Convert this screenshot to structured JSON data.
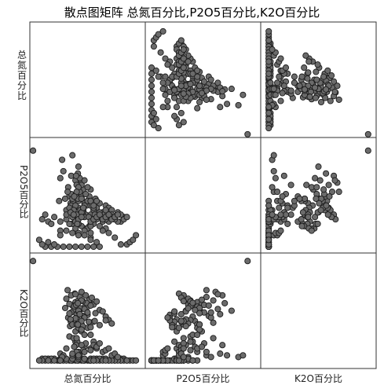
{
  "chart_data": {
    "type": "scatter",
    "title": "散点图矩阵 总氮百分比,P2O5百分比,K2O百分比",
    "variables": [
      "总氮百分比",
      "P2O5百分比",
      "K2O百分比"
    ],
    "row_labels": [
      "总\n氮\n百\n分\n比",
      "P2O5百分比",
      "K2O百分比"
    ],
    "col_labels": [
      "总氮百分比",
      "P2O5百分比",
      "K2O百分比"
    ],
    "variable_ranges": {
      "总氮百分比": [
        0.3,
        2.0
      ],
      "P2O5百分比": [
        0.0,
        0.45
      ],
      "K2O百分比": [
        0.0,
        3.0
      ]
    },
    "samples": [
      [
        0.95,
        0.2,
        1.75
      ],
      [
        0.9,
        0.18,
        1.65
      ],
      [
        1.0,
        0.17,
        1.8
      ],
      [
        0.85,
        0.22,
        1.7
      ],
      [
        1.05,
        0.21,
        1.55
      ],
      [
        1.1,
        0.19,
        1.6
      ],
      [
        0.8,
        0.16,
        1.85
      ],
      [
        0.92,
        0.15,
        1.5
      ],
      [
        1.02,
        0.24,
        1.9
      ],
      [
        0.88,
        0.23,
        1.45
      ],
      [
        1.12,
        0.14,
        1.95
      ],
      [
        0.97,
        0.13,
        1.4
      ],
      [
        1.15,
        0.2,
        1.62
      ],
      [
        0.78,
        0.21,
        1.58
      ],
      [
        1.2,
        0.18,
        1.72
      ],
      [
        1.08,
        0.25,
        1.35
      ],
      [
        0.94,
        0.12,
        2.0
      ],
      [
        1.25,
        0.16,
        1.68
      ],
      [
        0.83,
        0.26,
        1.3
      ],
      [
        1.3,
        0.17,
        1.77
      ],
      [
        0.98,
        0.11,
        1.25
      ],
      [
        1.18,
        0.22,
        1.82
      ],
      [
        0.87,
        0.19,
        1.2
      ],
      [
        1.35,
        0.19,
        1.52
      ],
      [
        0.99,
        0.27,
        1.15
      ],
      [
        1.22,
        0.13,
        1.88
      ],
      [
        0.91,
        0.2,
        1.1
      ],
      [
        1.4,
        0.15,
        1.48
      ],
      [
        1.05,
        0.28,
        2.05
      ],
      [
        0.86,
        0.1,
        1.05
      ],
      [
        0.93,
        0.17,
        1.63
      ],
      [
        1.03,
        0.16,
        1.57
      ],
      [
        1.13,
        0.18,
        1.73
      ],
      [
        0.96,
        0.23,
        1.67
      ],
      [
        1.07,
        0.14,
        1.78
      ],
      [
        1.28,
        0.21,
        1.43
      ],
      [
        1.45,
        0.18,
        1.33
      ],
      [
        1.5,
        0.17,
        1.23
      ],
      [
        1.55,
        0.16,
        1.13
      ],
      [
        0.82,
        0.24,
        2.1
      ],
      [
        0.95,
        0.0,
        0.05
      ],
      [
        1.05,
        0.0,
        0.05
      ],
      [
        0.75,
        0.0,
        0.05
      ],
      [
        0.85,
        0.0,
        0.05
      ],
      [
        1.15,
        0.0,
        0.05
      ],
      [
        1.25,
        0.0,
        0.05
      ],
      [
        0.65,
        0.0,
        0.05
      ],
      [
        0.55,
        0.0,
        0.05
      ],
      [
        1.35,
        0.0,
        0.05
      ],
      [
        0.45,
        0.0,
        0.05
      ],
      [
        1.0,
        0.06,
        0.05
      ],
      [
        1.1,
        0.08,
        0.05
      ],
      [
        0.9,
        0.1,
        0.05
      ],
      [
        1.2,
        0.04,
        0.05
      ],
      [
        0.8,
        0.12,
        0.05
      ],
      [
        0.98,
        0.14,
        0.05
      ],
      [
        1.08,
        0.16,
        0.05
      ],
      [
        0.88,
        0.18,
        0.05
      ],
      [
        1.18,
        0.09,
        0.05
      ],
      [
        0.7,
        0.07,
        0.05
      ],
      [
        1.0,
        0.2,
        0.3
      ],
      [
        0.95,
        0.18,
        0.6
      ],
      [
        1.05,
        0.22,
        0.9
      ],
      [
        0.9,
        0.21,
        1.1
      ],
      [
        1.1,
        0.19,
        0.45
      ],
      [
        0.85,
        0.17,
        0.75
      ],
      [
        1.15,
        0.2,
        1.0
      ],
      [
        1.02,
        0.24,
        0.2
      ],
      [
        0.92,
        0.16,
        0.15
      ],
      [
        1.12,
        0.23,
        0.55
      ],
      [
        0.5,
        0.11,
        0.1
      ],
      [
        0.4,
        0.12,
        0.1
      ],
      [
        0.6,
        0.13,
        0.1
      ],
      [
        0.55,
        0.1,
        0.1
      ],
      [
        0.45,
        0.14,
        0.1
      ],
      [
        1.2,
        0.14,
        0.1
      ],
      [
        1.1,
        0.13,
        0.1
      ],
      [
        1.3,
        0.12,
        0.1
      ],
      [
        1.4,
        0.11,
        0.1
      ],
      [
        1.0,
        0.12,
        0.1
      ],
      [
        0.9,
        0.13,
        0.1
      ],
      [
        0.8,
        0.14,
        0.1
      ],
      [
        0.7,
        0.11,
        0.1
      ],
      [
        1.6,
        0.12,
        0.1
      ],
      [
        1.7,
        0.11,
        0.1
      ],
      [
        1.75,
        0.13,
        0.1
      ],
      [
        1.55,
        0.14,
        0.1
      ],
      [
        1.65,
        0.15,
        0.1
      ],
      [
        1.45,
        0.16,
        0.1
      ],
      [
        1.35,
        0.15,
        0.1
      ],
      [
        1.25,
        0.16,
        0.1
      ],
      [
        1.15,
        0.08,
        1.38
      ],
      [
        1.05,
        0.09,
        1.12
      ],
      [
        0.95,
        0.08,
        1.28
      ],
      [
        1.25,
        0.1,
        1.18
      ],
      [
        1.35,
        0.09,
        1.08
      ],
      [
        0.85,
        0.1,
        1.42
      ],
      [
        1.45,
        0.08,
        1.22
      ],
      [
        1.1,
        0.07,
        1.3
      ],
      [
        1.0,
        0.1,
        1.48
      ],
      [
        1.2,
        0.09,
        1.02
      ],
      [
        0.97,
        0.14,
        1.1
      ],
      [
        1.07,
        0.15,
        1.05
      ],
      [
        1.17,
        0.13,
        1.18
      ],
      [
        0.87,
        0.15,
        1.25
      ],
      [
        1.27,
        0.14,
        1.2
      ],
      [
        0.7,
        0.3,
        0.25
      ],
      [
        0.75,
        0.33,
        0.2
      ],
      [
        0.73,
        0.38,
        0.15
      ],
      [
        0.9,
        0.4,
        0.2
      ],
      [
        1.0,
        0.35,
        1.5
      ],
      [
        0.68,
        0.2,
        0.05
      ],
      [
        0.88,
        0.31,
        1.95
      ],
      [
        0.95,
        0.29,
        1.98
      ],
      [
        1.2,
        0.25,
        1.65
      ],
      [
        1.05,
        0.27,
        1.8
      ],
      [
        1.1,
        0.29,
        1.55
      ],
      [
        1.15,
        0.26,
        1.45
      ],
      [
        1.02,
        0.3,
        1.4
      ],
      [
        0.99,
        0.32,
        1.72
      ],
      [
        1.05,
        0.15,
        0.5
      ],
      [
        1.1,
        0.18,
        0.8
      ],
      [
        1.2,
        0.2,
        0.8
      ],
      [
        1.25,
        0.17,
        0.6
      ],
      [
        1.3,
        0.2,
        0.4
      ],
      [
        0.95,
        0.11,
        0.9
      ],
      [
        1.0,
        0.12,
        1.0
      ],
      [
        1.05,
        0.13,
        1.2
      ],
      [
        0.92,
        0.14,
        0.7
      ],
      [
        0.98,
        0.1,
        0.6
      ],
      [
        0.96,
        0.31,
        0.5
      ],
      [
        0.97,
        0.27,
        0.7
      ],
      [
        0.99,
        0.21,
        1.1
      ],
      [
        1.8,
        0.01,
        0.05
      ],
      [
        1.85,
        0.02,
        0.05
      ],
      [
        1.9,
        0.03,
        0.05
      ],
      [
        1.95,
        0.05,
        0.05
      ],
      [
        1.7,
        0.01,
        0.05
      ],
      [
        1.6,
        0.04,
        0.05
      ],
      [
        1.5,
        0.06,
        0.05
      ],
      [
        1.4,
        0.07,
        0.05
      ],
      [
        1.3,
        0.02,
        0.05
      ],
      [
        1.2,
        0.03,
        0.05
      ],
      [
        0.7,
        0.05,
        0.05
      ],
      [
        0.6,
        0.01,
        0.05
      ],
      [
        0.5,
        0.02,
        0.05
      ],
      [
        0.4,
        0.01,
        0.05
      ],
      [
        0.35,
        0.03,
        0.05
      ],
      [
        1.75,
        0.12,
        0.05
      ],
      [
        1.8,
        0.13,
        0.05
      ],
      [
        1.7,
        0.14,
        0.05
      ],
      [
        1.65,
        0.11,
        0.05
      ],
      [
        1.6,
        0.12,
        0.05
      ],
      [
        1.55,
        0.13,
        0.05
      ],
      [
        1.5,
        0.11,
        0.05
      ],
      [
        1.45,
        0.12,
        0.05
      ],
      [
        1.05,
        0.21,
        0.95
      ],
      [
        1.0,
        0.26,
        0.15
      ],
      [
        0.97,
        0.24,
        0.3
      ],
      [
        0.93,
        0.22,
        0.45
      ],
      [
        1.08,
        0.17,
        0.35
      ],
      [
        1.2,
        0.11,
        0.4
      ],
      [
        1.25,
        0.12,
        0.5
      ],
      [
        1.3,
        0.13,
        0.45
      ],
      [
        1.35,
        0.14,
        0.55
      ],
      [
        1.4,
        0.12,
        0.3
      ],
      [
        1.45,
        0.13,
        0.35
      ],
      [
        1.5,
        0.14,
        0.4
      ],
      [
        1.55,
        0.12,
        0.2
      ],
      [
        1.6,
        0.13,
        0.25
      ],
      [
        1.65,
        0.14,
        0.15
      ],
      [
        1.0,
        0.05,
        0.2
      ],
      [
        1.1,
        0.05,
        0.3
      ],
      [
        0.9,
        0.06,
        0.25
      ],
      [
        1.2,
        0.06,
        0.35
      ],
      [
        0.8,
        0.07,
        0.4
      ],
      [
        1.25,
        0.18,
        0.05
      ],
      [
        0.25,
        0.42,
        2.95
      ]
    ],
    "marker": {
      "fill": "#6b6b6b",
      "stroke": "#1c1c1c"
    },
    "grid": false,
    "legend": "none"
  }
}
